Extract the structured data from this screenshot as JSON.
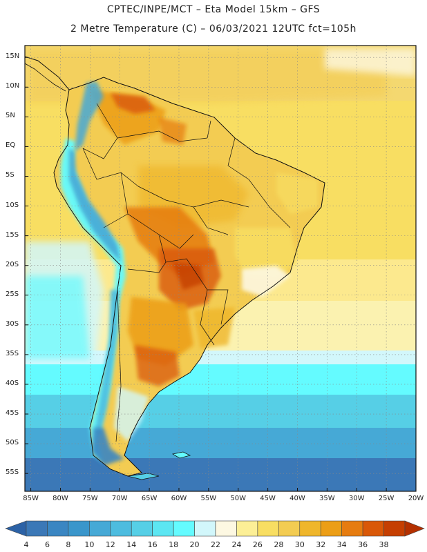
{
  "header": {
    "line1": "CPTEC/INPE/MCT –  Eta Model 15km – GFS",
    "line2": "2 Metre Temperature (C) – 06/03/2021 12UTC fct=105h"
  },
  "map": {
    "lat_labels": [
      "15N",
      "10N",
      "5N",
      "EQ",
      "5S",
      "10S",
      "15S",
      "20S",
      "25S",
      "30S",
      "35S",
      "40S",
      "45S",
      "50S",
      "55S"
    ],
    "lon_labels": [
      "85W",
      "80W",
      "75W",
      "70W",
      "65W",
      "60W",
      "55W",
      "50W",
      "45W",
      "40W",
      "35W",
      "30W",
      "25W",
      "20W"
    ],
    "lat_range": [
      17,
      -58
    ],
    "lon_range": [
      -86,
      -20
    ]
  },
  "colorbar": {
    "levels": [
      "4",
      "6",
      "8",
      "10",
      "12",
      "14",
      "16",
      "18",
      "20",
      "22",
      "24",
      "26",
      "28",
      "30",
      "32",
      "34",
      "36",
      "38"
    ],
    "colors": [
      "#3b78b7",
      "#3a86c2",
      "#3a96cb",
      "#46a9d6",
      "#4dbcdf",
      "#56cfe6",
      "#5ce6f2",
      "#64fbff",
      "#d2f7fb",
      "#fdf8e2",
      "#fcef96",
      "#f8de62",
      "#f3cc52",
      "#efb62b",
      "#ec9e16",
      "#e67c10",
      "#d95808",
      "#c53f02"
    ],
    "low_color": "#2c62a6",
    "high_color": "#b43000"
  }
}
